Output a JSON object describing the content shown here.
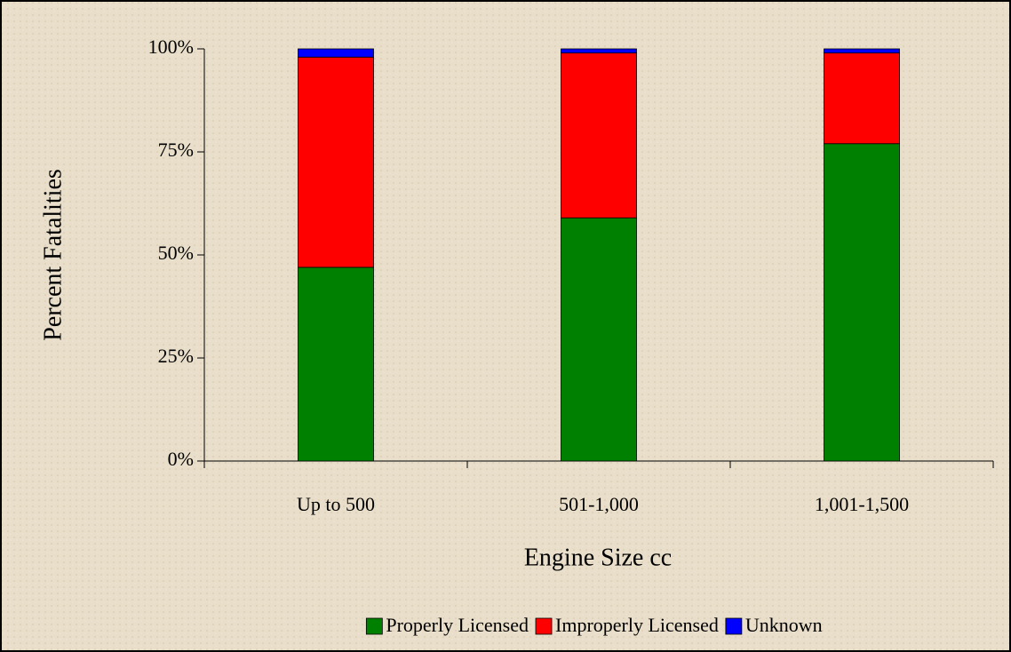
{
  "chart_data": {
    "type": "stacked-bar",
    "x_label": "Engine Size cc",
    "y_label": "Percent Fatalities",
    "categories": [
      "Up to 500",
      "501-1,000",
      "1,001-1,500"
    ],
    "series": [
      {
        "name": "Properly Licensed",
        "color": "#008000",
        "values": [
          47,
          59,
          77
        ]
      },
      {
        "name": "Improperly Licensed",
        "color": "#ff0000",
        "values": [
          51,
          40,
          22
        ]
      },
      {
        "name": "Unknown",
        "color": "#0000ff",
        "values": [
          2,
          1,
          1
        ]
      }
    ],
    "ylim": [
      0,
      100
    ],
    "yticks": [
      {
        "value": 0,
        "label": "0%"
      },
      {
        "value": 25,
        "label": "25%"
      },
      {
        "value": 50,
        "label": "50%"
      },
      {
        "value": 75,
        "label": "75%"
      },
      {
        "value": 100,
        "label": "100%"
      }
    ],
    "legend": "bottom"
  }
}
